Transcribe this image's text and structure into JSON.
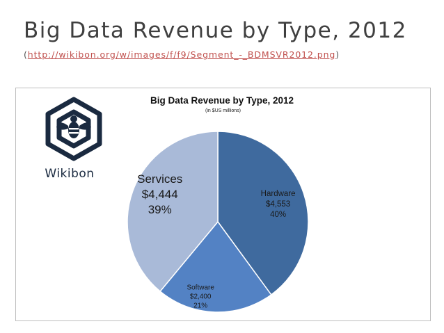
{
  "slide": {
    "title": "Big Data Revenue by Type, 2012",
    "source_open": "(",
    "source_url": "http://wikibon.org/w/images/f/f9/Segment_-_BDMSVR2012.png",
    "source_close": ")"
  },
  "logo": {
    "text": "Wikibon",
    "icon": "bee-hexagon-icon"
  },
  "colors": {
    "hardware": "#3f6a9e",
    "software": "#5382c4",
    "services": "#a9bad8"
  },
  "chart_data": {
    "type": "pie",
    "title": "Big Data Revenue by Type, 2012",
    "subtitle": "(in $US millions)",
    "slices": [
      {
        "name": "Hardware",
        "value": 4553,
        "value_label": "$4,553",
        "percent_label": "40%"
      },
      {
        "name": "Software",
        "value": 2400,
        "value_label": "$2,400",
        "percent_label": "21%"
      },
      {
        "name": "Services",
        "value": 4444,
        "value_label": "$4,444",
        "percent_label": "39%"
      }
    ],
    "start_angle_deg": 0,
    "direction": "clockwise",
    "legend": "none"
  }
}
